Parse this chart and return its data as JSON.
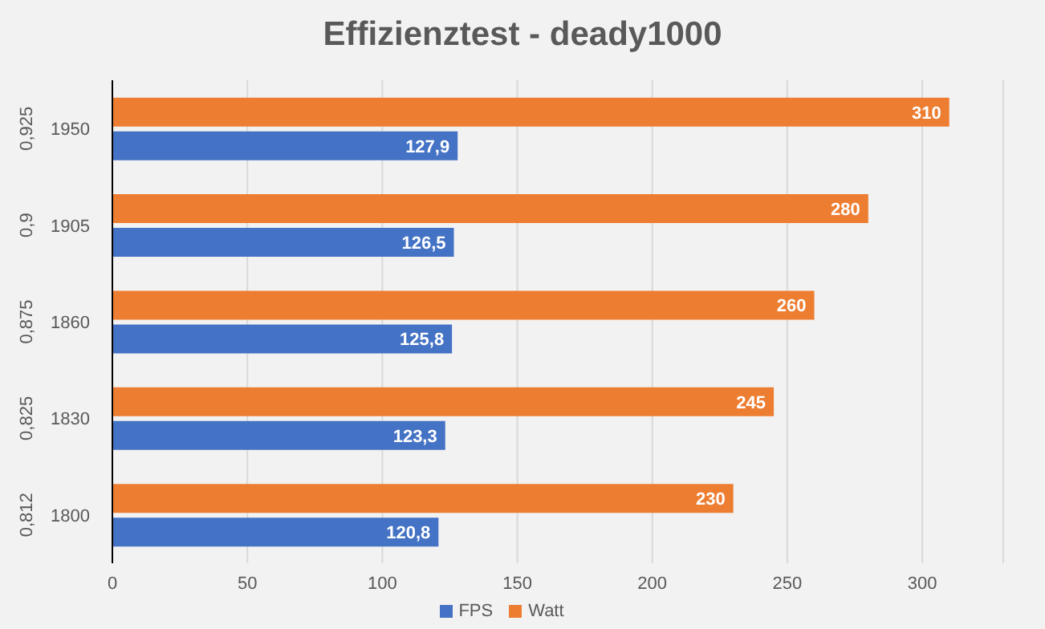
{
  "chart_data": {
    "type": "bar",
    "orientation": "horizontal",
    "title": "Effizienztest - deady1000",
    "categories": [
      "1950",
      "1905",
      "1860",
      "1830",
      "1800"
    ],
    "series": [
      {
        "name": "Watt",
        "color": "#ed7d31",
        "values": [
          310,
          280,
          260,
          245,
          230
        ],
        "value_labels": [
          "310",
          "280",
          "260",
          "245",
          "230"
        ]
      },
      {
        "name": "FPS",
        "color": "#4472c4",
        "values": [
          127.9,
          126.5,
          125.8,
          123.3,
          120.8
        ],
        "value_labels": [
          "127,9",
          "126,5",
          "125,8",
          "123,3",
          "120,8"
        ]
      }
    ],
    "annotations": [
      "0,925",
      "0,9",
      "0,875",
      "0,825",
      "0,812"
    ],
    "xlim": [
      0,
      330
    ],
    "xticks": [
      0,
      50,
      100,
      150,
      200,
      250,
      300
    ],
    "grid": "x",
    "legend": "bottom"
  }
}
